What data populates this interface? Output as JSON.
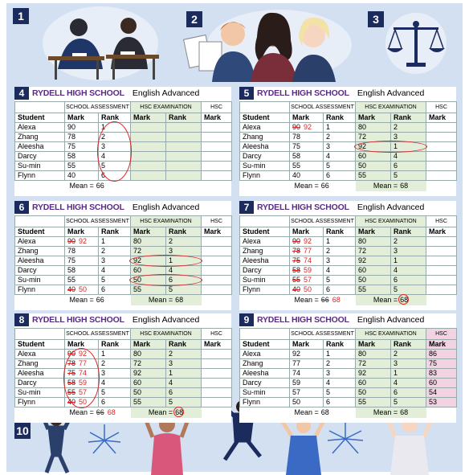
{
  "illustration_steps": [
    "1",
    "2",
    "3",
    "10"
  ],
  "table_header": {
    "school": "RYDELL HIGH SCHOOL",
    "subject": "English Advanced",
    "groups": [
      "SCHOOL ASSESSMENT",
      "HSC EXAMINATION",
      "HSC"
    ],
    "columns": [
      "Student",
      "Mark",
      "Rank",
      "Mark",
      "Rank",
      "Mark"
    ]
  },
  "panels": [
    {
      "step": "4",
      "rows": [
        [
          "Alexa",
          90,
          1,
          null,
          null,
          null
        ],
        [
          "Zhang",
          78,
          2,
          null,
          null,
          null
        ],
        [
          "Aleesha",
          75,
          3,
          null,
          null,
          null
        ],
        [
          "Darcy",
          58,
          4,
          null,
          null,
          null
        ],
        [
          "Su-min",
          55,
          5,
          null,
          null,
          null
        ],
        [
          "Flynn",
          40,
          6,
          null,
          null,
          null
        ]
      ],
      "means": [
        {
          "label": "Mean =",
          "value": 66
        }
      ]
    },
    {
      "step": "5",
      "rows": [
        [
          "Alexa",
          {
            "struck": 90,
            "new": 92
          },
          1,
          80,
          2,
          null
        ],
        [
          "Zhang",
          78,
          2,
          72,
          3,
          null
        ],
        [
          "Aleesha",
          75,
          3,
          92,
          1,
          null
        ],
        [
          "Darcy",
          58,
          4,
          60,
          4,
          null
        ],
        [
          "Su-min",
          55,
          5,
          50,
          6,
          null
        ],
        [
          "Flynn",
          40,
          6,
          55,
          5,
          null
        ]
      ],
      "means": [
        {
          "label": "Mean =",
          "value": 66
        },
        {
          "label": "Mean =",
          "value": 68
        }
      ]
    },
    {
      "step": "6",
      "rows": [
        [
          "Alexa",
          {
            "struck": 90,
            "new": 92
          },
          1,
          80,
          2,
          null
        ],
        [
          "Zhang",
          78,
          2,
          72,
          3,
          null
        ],
        [
          "Aleesha",
          75,
          3,
          92,
          1,
          null
        ],
        [
          "Darcy",
          58,
          4,
          60,
          4,
          null
        ],
        [
          "Su-min",
          55,
          5,
          50,
          6,
          null
        ],
        [
          "Flynn",
          {
            "struck": 40,
            "new": 50
          },
          6,
          55,
          5,
          null
        ]
      ],
      "means": [
        {
          "label": "Mean =",
          "value": 66
        },
        {
          "label": "Mean =",
          "value": 68
        }
      ]
    },
    {
      "step": "7",
      "rows": [
        [
          "Alexa",
          {
            "struck": 90,
            "new": 92
          },
          1,
          80,
          2,
          null
        ],
        [
          "Zhang",
          {
            "struck": 78,
            "new": 77
          },
          2,
          72,
          3,
          null
        ],
        [
          "Aleesha",
          {
            "struck": 75,
            "new": 74
          },
          3,
          92,
          1,
          null
        ],
        [
          "Darcy",
          {
            "struck": 58,
            "new": 59
          },
          4,
          60,
          4,
          null
        ],
        [
          "Su-min",
          {
            "struck": 55,
            "new": 57
          },
          5,
          50,
          6,
          null
        ],
        [
          "Flynn",
          {
            "struck": 40,
            "new": 50
          },
          6,
          55,
          5,
          null
        ]
      ],
      "means": [
        {
          "label": "Mean =",
          "struck": 66,
          "new": 68
        },
        {
          "label": "Mean =",
          "value": 68
        }
      ]
    },
    {
      "step": "8",
      "rows": [
        [
          "Alexa",
          {
            "struck": 90,
            "new": 92
          },
          1,
          80,
          2,
          null
        ],
        [
          "Zhang",
          {
            "struck": 78,
            "new": 77
          },
          2,
          72,
          3,
          null
        ],
        [
          "Aleesha",
          {
            "struck": 75,
            "new": 74
          },
          3,
          92,
          1,
          null
        ],
        [
          "Darcy",
          {
            "struck": 58,
            "new": 59
          },
          4,
          60,
          4,
          null
        ],
        [
          "Su-min",
          {
            "struck": 55,
            "new": 57
          },
          5,
          50,
          6,
          null
        ],
        [
          "Flynn",
          {
            "struck": 40,
            "new": 50
          },
          6,
          55,
          5,
          null
        ]
      ],
      "means": [
        {
          "label": "Mean =",
          "struck": 66,
          "new": 68
        },
        {
          "label": "Mean =",
          "value": 68
        }
      ]
    },
    {
      "step": "9",
      "rows": [
        [
          "Alexa",
          92,
          1,
          80,
          2,
          86
        ],
        [
          "Zhang",
          77,
          2,
          72,
          3,
          75
        ],
        [
          "Aleesha",
          74,
          3,
          92,
          1,
          83
        ],
        [
          "Darcy",
          59,
          4,
          60,
          4,
          60
        ],
        [
          "Su-min",
          57,
          5,
          50,
          6,
          54
        ],
        [
          "Flynn",
          50,
          6,
          55,
          5,
          53
        ]
      ],
      "means": [
        {
          "label": "Mean =",
          "value": 68
        },
        {
          "label": "Mean =",
          "value": 68
        }
      ]
    }
  ]
}
